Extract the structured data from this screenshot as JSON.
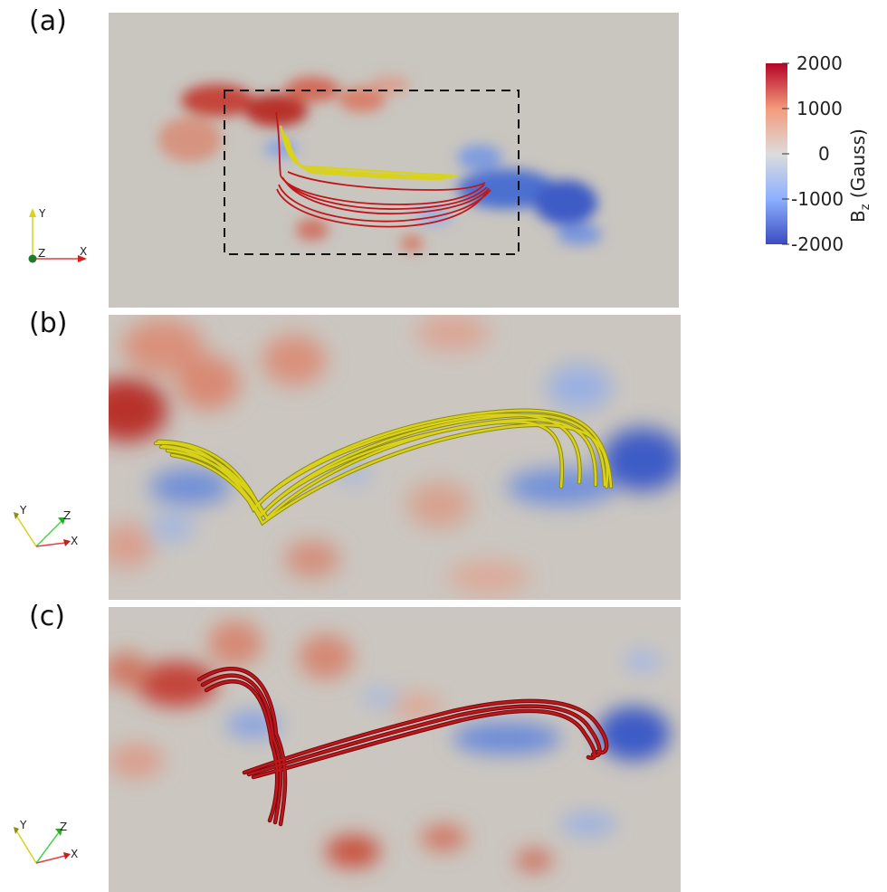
{
  "panels": [
    {
      "label": "(a)"
    },
    {
      "label": "(b)"
    },
    {
      "label": "(c)"
    }
  ],
  "axes_triads": [
    {
      "x": "X",
      "y": "Y",
      "z": "Z"
    },
    {
      "x": "X",
      "y": "Y",
      "z": "Z"
    },
    {
      "x": "X",
      "y": "Y",
      "z": "Z"
    }
  ],
  "colorbar": {
    "title_main": "B",
    "title_sub": "z",
    "title_unit": " (Gauss)",
    "ticks": [
      "2000",
      "1000",
      "0",
      "-1000",
      "-2000"
    ],
    "range": [
      -2000,
      2000
    ],
    "colormap": [
      "#3b4cc0",
      "#8db0fe",
      "#dddcdc",
      "#f49a7b",
      "#b40426"
    ]
  },
  "colors": {
    "positive": "#c4443a",
    "negative": "#3b5ec8",
    "background": "#c9c5bf",
    "yellow_tube": "#d8d21c",
    "red_tube": "#c0161b",
    "box_dash": "#111111"
  }
}
